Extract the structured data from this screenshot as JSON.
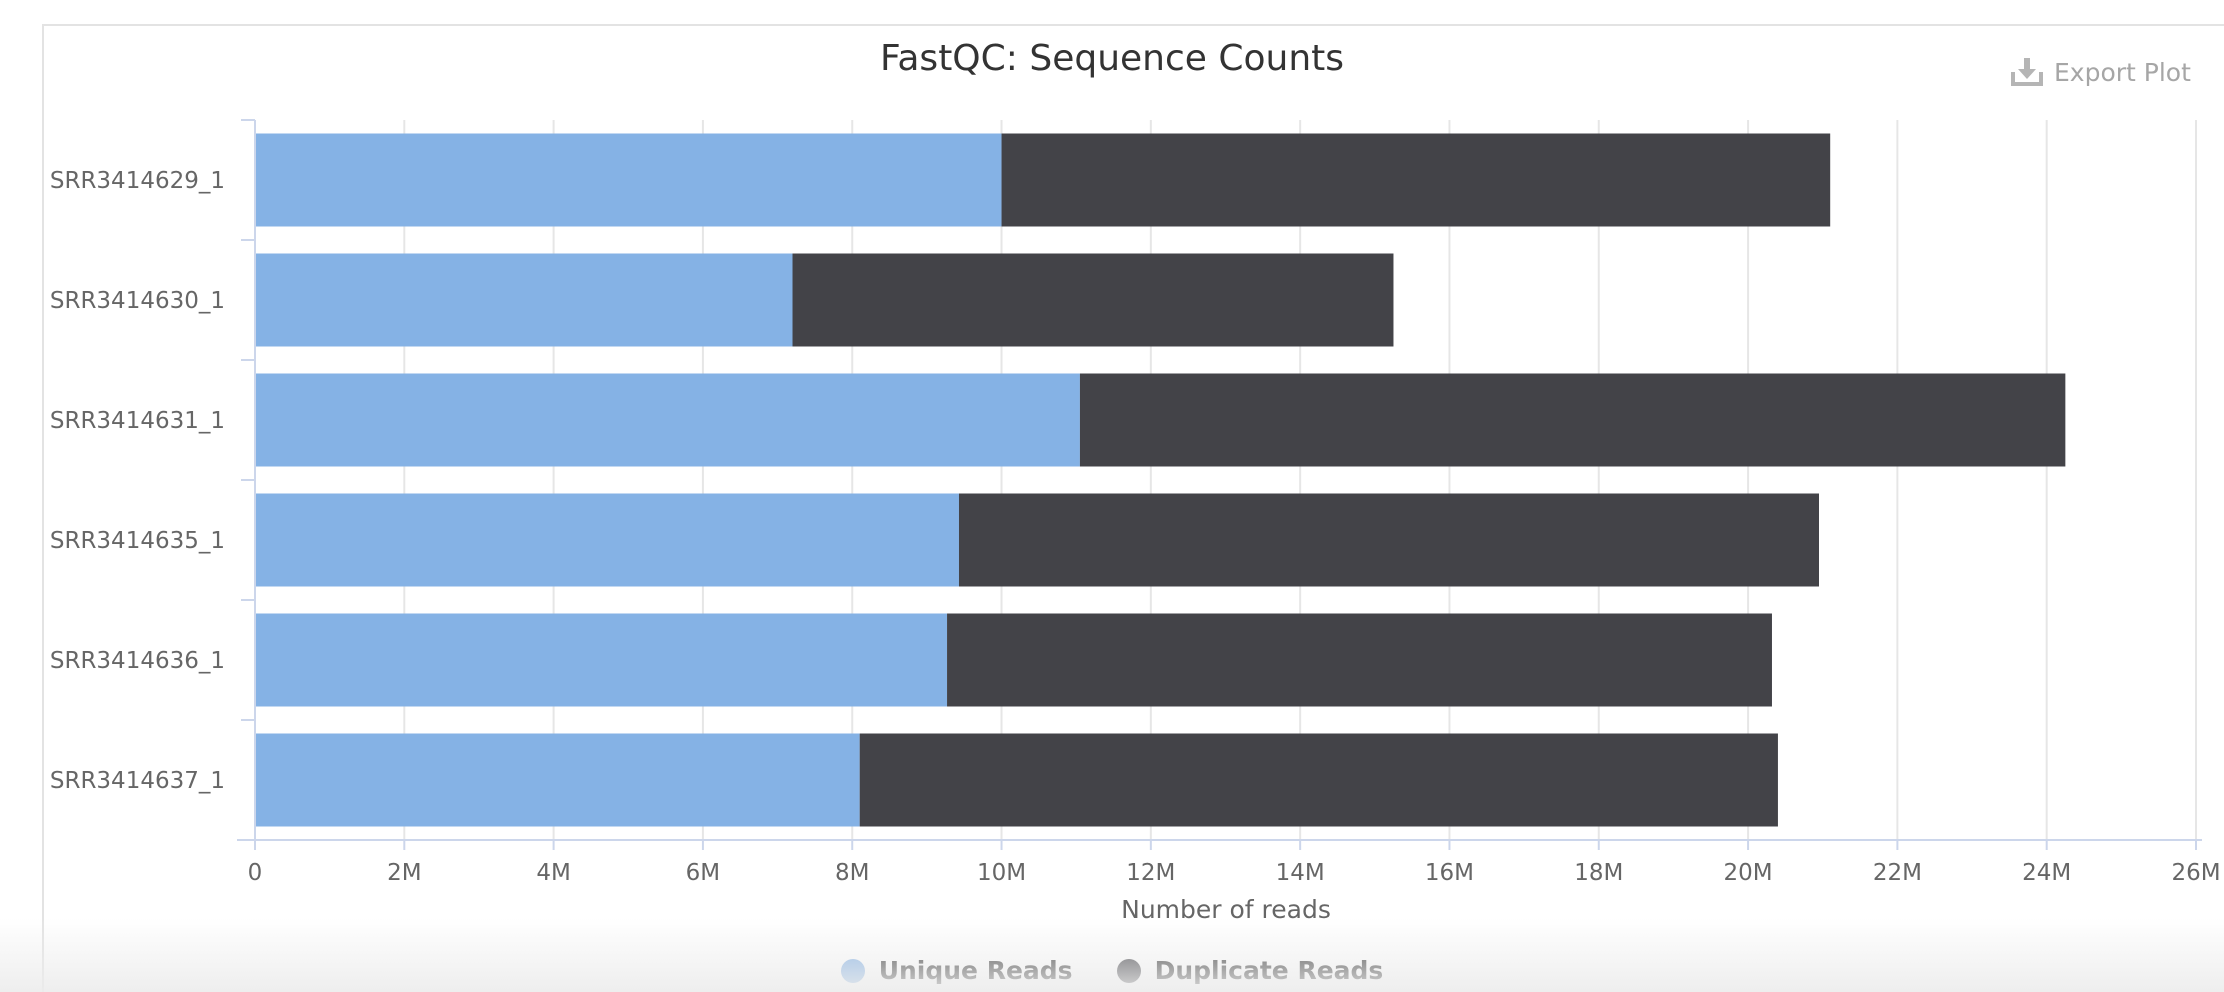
{
  "export_label": "Export Plot",
  "chart_data": {
    "type": "bar",
    "orientation": "horizontal",
    "stacked": true,
    "title": "FastQC: Sequence Counts",
    "xlabel": "Number of reads",
    "ylabel": "",
    "xlim": [
      0,
      26000000
    ],
    "x_ticks": [
      "0",
      "2M",
      "4M",
      "6M",
      "8M",
      "10M",
      "12M",
      "14M",
      "16M",
      "18M",
      "20M",
      "22M",
      "24M",
      "26M"
    ],
    "categories": [
      "SRR3414629_1",
      "SRR3414630_1",
      "SRR3414631_1",
      "SRR3414635_1",
      "SRR3414636_1",
      "SRR3414637_1"
    ],
    "series": [
      {
        "name": "Unique Reads",
        "color": "#85b2e5",
        "values": [
          10000000,
          7200000,
          11050000,
          9430000,
          9270000,
          8100000
        ]
      },
      {
        "name": "Duplicate Reads",
        "color": "#434348",
        "values": [
          11100000,
          8050000,
          13200000,
          11520000,
          11050000,
          12300000
        ]
      }
    ],
    "grid": true,
    "legend_position": "bottom-center"
  }
}
